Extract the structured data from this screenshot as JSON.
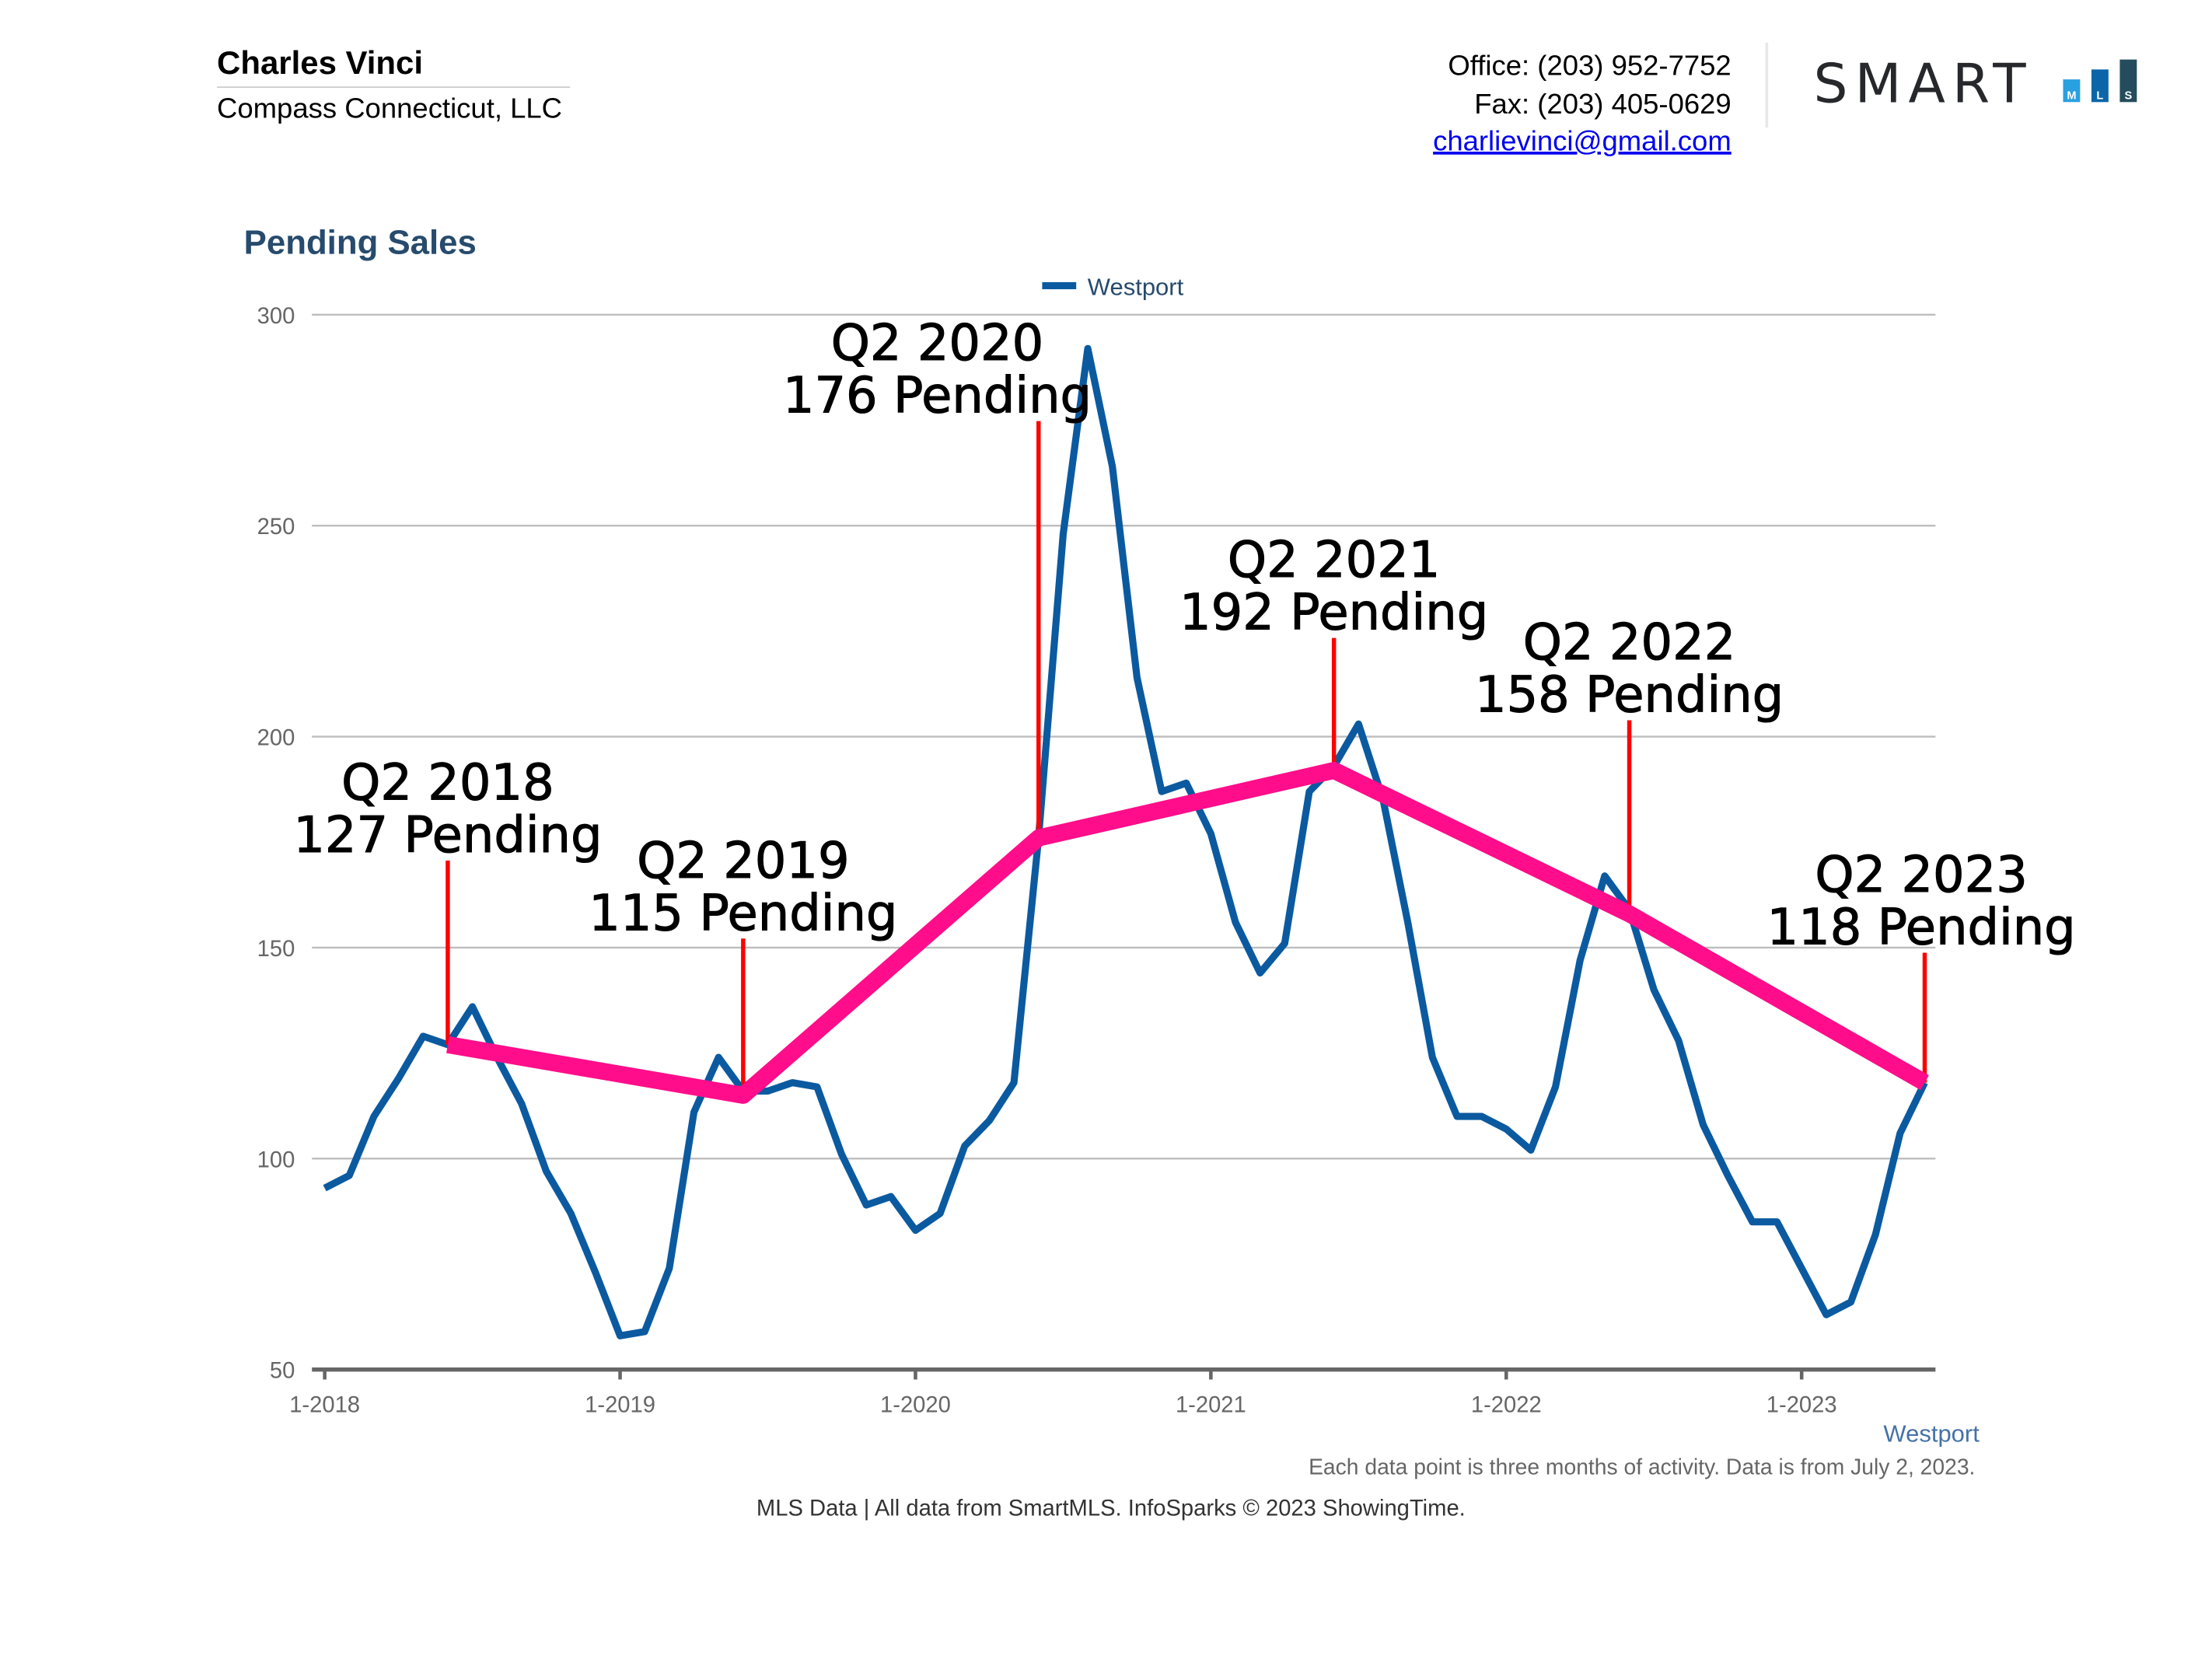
{
  "header": {
    "agent_name": "Charles Vinci",
    "company": "Compass Connecticut, LLC",
    "office": "Office: (203) 952-7752",
    "fax": "Fax: (203) 405-0629",
    "email": "charlievinci@gmail.com",
    "logo": {
      "text": "SMART",
      "blocks": [
        "M",
        "L",
        "S"
      ],
      "colors": [
        "#29a0e0",
        "#0a66a8",
        "#244c5c"
      ]
    }
  },
  "chart_data": {
    "type": "line",
    "title": "Pending Sales",
    "legend": {
      "label": "Westport",
      "placement": "top"
    },
    "series_label": "Westport",
    "xlabel": "",
    "ylabel": "",
    "ylim": [
      50,
      300
    ],
    "yticks": [
      "50",
      "100",
      "150",
      "200",
      "250",
      "300"
    ],
    "xticks": [
      "1-2018",
      "1-2019",
      "1-2020",
      "1-2021",
      "1-2022",
      "1-2023"
    ],
    "grid": true,
    "colors": {
      "series": "#0b5aa0",
      "trend": "#ff0d8a",
      "annotation_line": "#ff0000"
    },
    "series": [
      {
        "name": "Westport",
        "x_start": "1-2018",
        "frequency": "monthly",
        "values": [
          93,
          96,
          110,
          119,
          129,
          127,
          136,
          124,
          113,
          97,
          87,
          73,
          58,
          59,
          74,
          111,
          124,
          116,
          116,
          118,
          117,
          101,
          89,
          91,
          83,
          87,
          103,
          109,
          118,
          176,
          248,
          292,
          264,
          214,
          187,
          189,
          177,
          156,
          144,
          151,
          187,
          193,
          203,
          185,
          156,
          124,
          110,
          110,
          107,
          102,
          117,
          147,
          167,
          159,
          140,
          128,
          108,
          96,
          85,
          85,
          74,
          63,
          66,
          82,
          106,
          118
        ]
      }
    ],
    "trend": {
      "x": [
        "6-2018",
        "6-2019",
        "6-2020",
        "6-2021",
        "6-2022",
        "6-2023"
      ],
      "values": [
        127,
        115,
        176,
        192,
        158,
        118
      ]
    },
    "annotations": [
      {
        "line1": "Q2 2018",
        "line2": "127 Pending"
      },
      {
        "line1": "Q2 2019",
        "line2": "115 Pending"
      },
      {
        "line1": "Q2 2020",
        "line2": "176 Pending"
      },
      {
        "line1": "Q2 2021",
        "line2": "192 Pending"
      },
      {
        "line1": "Q2 2022",
        "line2": "158 Pending"
      },
      {
        "line1": "Q2 2023",
        "line2": "118 Pending"
      }
    ]
  },
  "footer": {
    "note": "Each data point is three months of activity. Data is from July 2, 2023.",
    "credit": "MLS Data | All data from SmartMLS. InfoSparks © 2023 ShowingTime."
  }
}
